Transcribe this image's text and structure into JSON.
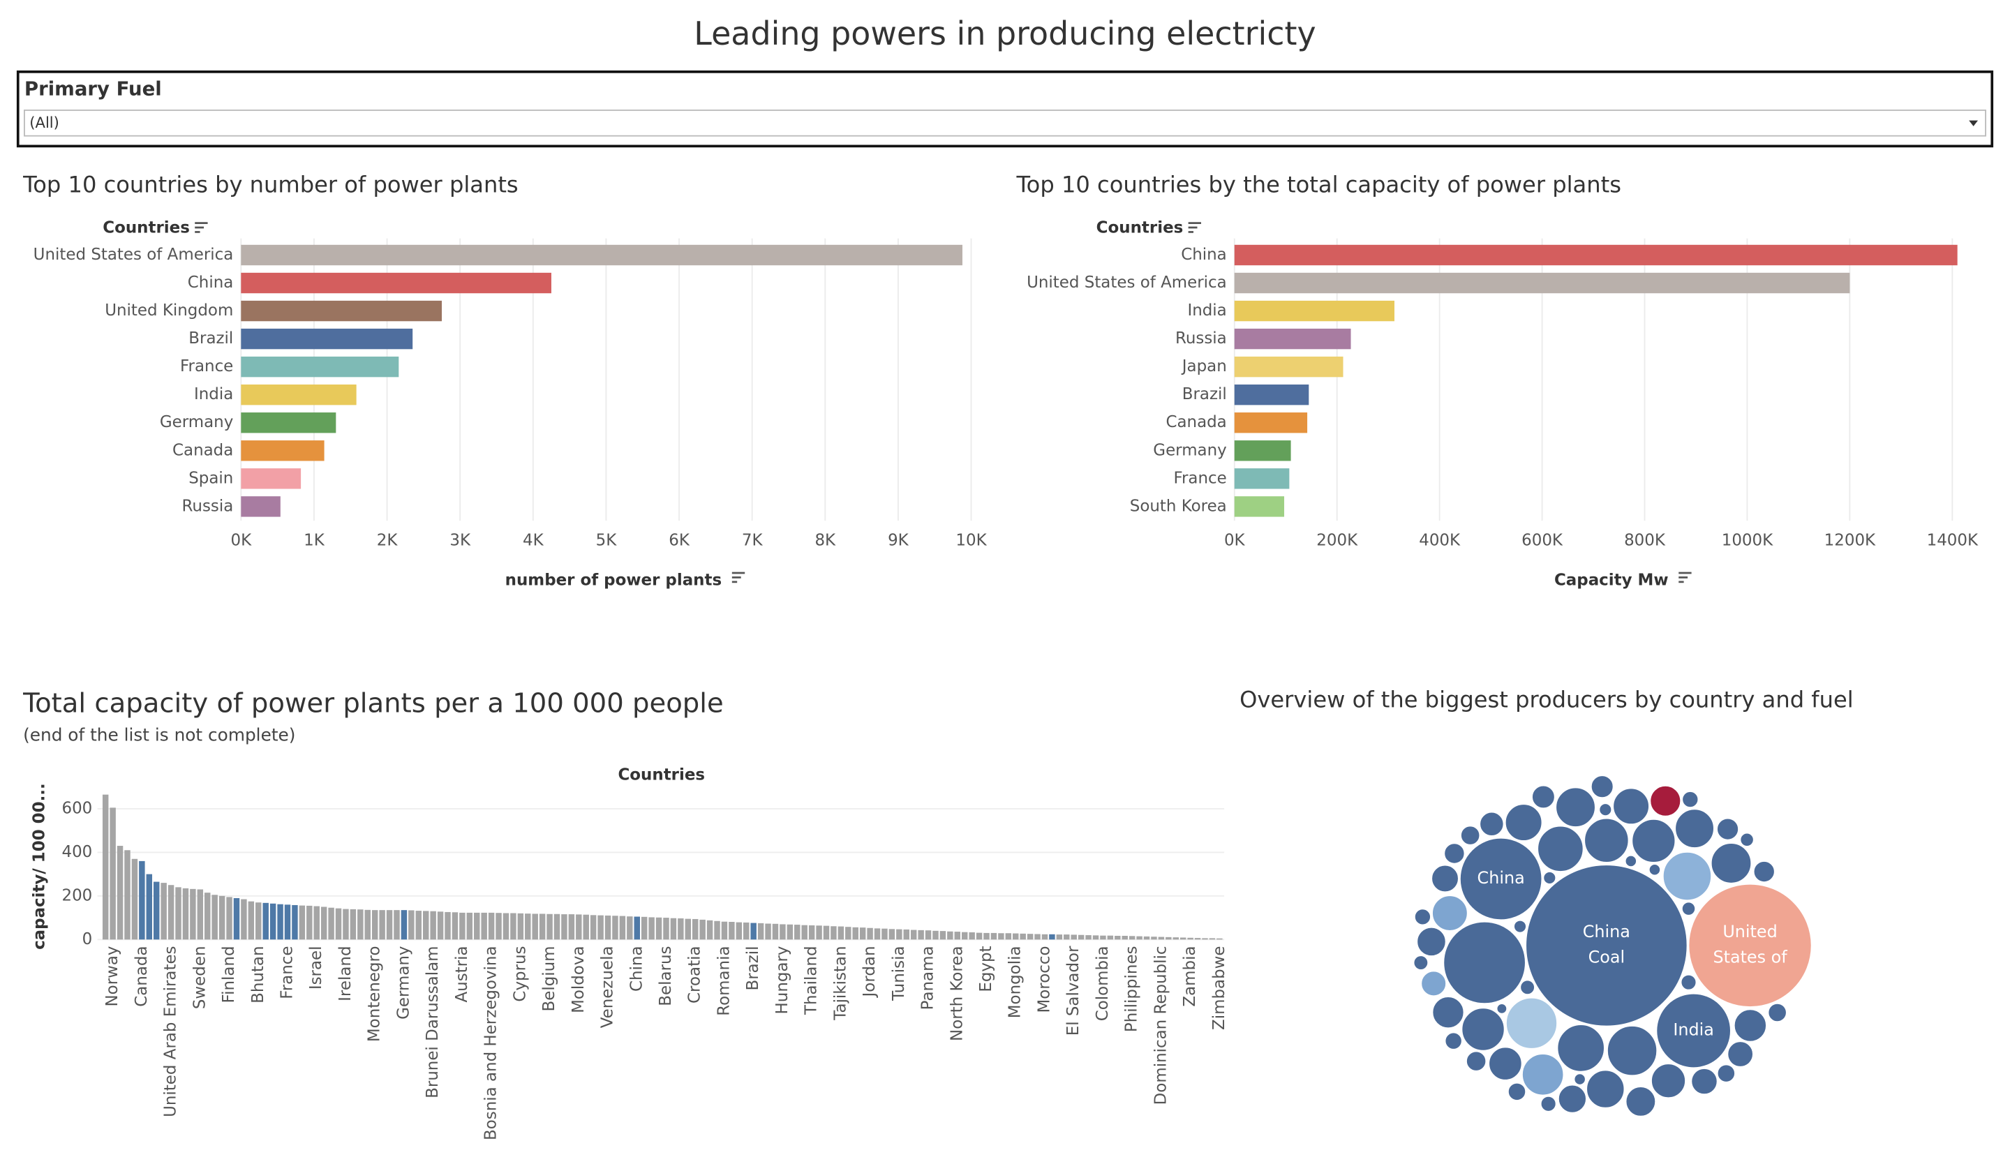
{
  "title": "Leading powers in producing electricty",
  "filter": {
    "label": "Primary Fuel",
    "value": "(All)"
  },
  "chart_data": [
    {
      "type": "hbar",
      "title": "Top 10 countries by number of power plants",
      "category_label": "Countries",
      "x_label": "number of power plants",
      "categories": [
        "United States of America",
        "China",
        "United Kingdom",
        "Brazil",
        "France",
        "India",
        "Germany",
        "Canada",
        "Spain",
        "Russia"
      ],
      "values": [
        9880,
        4250,
        2750,
        2350,
        2160,
        1580,
        1300,
        1140,
        820,
        540
      ],
      "colors": [
        "#b9b0ab",
        "#d45e5e",
        "#9a7460",
        "#4f6e9e",
        "#7ebab5",
        "#e8c95a",
        "#63a05a",
        "#e5923d",
        "#f2a0a6",
        "#a87ca1"
      ],
      "xlim": [
        0,
        10200
      ],
      "xticks": [
        {
          "value": 0,
          "label": "0K"
        },
        {
          "value": 1000,
          "label": "1K"
        },
        {
          "value": 2000,
          "label": "2K"
        },
        {
          "value": 3000,
          "label": "3K"
        },
        {
          "value": 4000,
          "label": "4K"
        },
        {
          "value": 5000,
          "label": "5K"
        },
        {
          "value": 6000,
          "label": "6K"
        },
        {
          "value": 7000,
          "label": "7K"
        },
        {
          "value": 8000,
          "label": "8K"
        },
        {
          "value": 9000,
          "label": "9K"
        },
        {
          "value": 10000,
          "label": "10K"
        }
      ],
      "grid": true
    },
    {
      "type": "hbar",
      "title": "Top 10 countries by the total capacity of power plants",
      "category_label": "Countries",
      "x_label": "Capacity Mw",
      "categories": [
        "China",
        "United States of America",
        "India",
        "Russia",
        "Japan",
        "Brazil",
        "Canada",
        "Germany",
        "France",
        "South Korea"
      ],
      "values": [
        1410000,
        1200000,
        312000,
        227000,
        212000,
        145000,
        142000,
        110000,
        107000,
        97000
      ],
      "colors": [
        "#d45e5e",
        "#b9b0ab",
        "#e8c95a",
        "#a87ca1",
        "#edd070",
        "#4f6e9e",
        "#e5923d",
        "#63a05a",
        "#7ebab5",
        "#9ed083"
      ],
      "xlim": [
        0,
        1470000
      ],
      "xticks": [
        {
          "value": 0,
          "label": "0K"
        },
        {
          "value": 200000,
          "label": "200K"
        },
        {
          "value": 400000,
          "label": "400K"
        },
        {
          "value": 600000,
          "label": "600K"
        },
        {
          "value": 800000,
          "label": "800K"
        },
        {
          "value": 1000000,
          "label": "1000K"
        },
        {
          "value": 1200000,
          "label": "1200K"
        },
        {
          "value": 1400000,
          "label": "1400K"
        }
      ],
      "grid": true
    },
    {
      "type": "column",
      "title": "Total capacity of power plants per a 100 000 people",
      "subtitle": "(end of the list is not complete)",
      "x_label": "Countries",
      "y_label": "capacity/ 100 00...",
      "categories": [
        null,
        "Norway",
        null,
        null,
        null,
        "Canada",
        null,
        null,
        null,
        "United Arab Emirates",
        null,
        null,
        null,
        "Sweden",
        null,
        null,
        null,
        "Finland",
        null,
        null,
        null,
        "Bhutan",
        null,
        null,
        null,
        "France",
        null,
        null,
        null,
        "Israel",
        null,
        null,
        null,
        "Ireland",
        null,
        null,
        null,
        "Montenegro",
        null,
        null,
        null,
        "Germany",
        null,
        null,
        null,
        "Brunei Darussalam",
        null,
        null,
        null,
        "Austria",
        null,
        null,
        null,
        "Bosnia and Herzegovina",
        null,
        null,
        null,
        "Cyprus",
        null,
        null,
        null,
        "Belgium",
        null,
        null,
        null,
        "Moldova",
        null,
        null,
        null,
        "Venezuela",
        null,
        null,
        null,
        "China",
        null,
        null,
        null,
        "Belarus",
        null,
        null,
        null,
        "Croatia",
        null,
        null,
        null,
        "Romania",
        null,
        null,
        null,
        "Brazil",
        null,
        null,
        null,
        "Hungary",
        null,
        null,
        null,
        "Thailand",
        null,
        null,
        null,
        "Tajikistan",
        null,
        null,
        null,
        "Jordan",
        null,
        null,
        null,
        "Tunisia",
        null,
        null,
        null,
        "Panama",
        null,
        null,
        null,
        "North Korea",
        null,
        null,
        null,
        "Egypt",
        null,
        null,
        null,
        "Mongolia",
        null,
        null,
        null,
        "Morocco",
        null,
        null,
        null,
        "El Salvador",
        null,
        null,
        null,
        "Colombia",
        null,
        null,
        null,
        "Philippines",
        null,
        null,
        null,
        "Dominican Republic",
        null,
        null,
        null,
        "Zambia",
        null,
        null,
        null,
        "Zimbabwe"
      ],
      "values": [
        665,
        605,
        430,
        410,
        370,
        360,
        300,
        265,
        260,
        250,
        240,
        235,
        232,
        230,
        215,
        205,
        200,
        195,
        190,
        185,
        175,
        170,
        168,
        165,
        162,
        160,
        158,
        156,
        155,
        153,
        150,
        146,
        143,
        140,
        139,
        138,
        136,
        135,
        135,
        135,
        135,
        135,
        134,
        132,
        131,
        130,
        128,
        126,
        125,
        123,
        123,
        123,
        123,
        123,
        122,
        121,
        121,
        120,
        119,
        118,
        118,
        117,
        117,
        116,
        116,
        115,
        114,
        112,
        111,
        110,
        109,
        108,
        106,
        105,
        104,
        102,
        101,
        100,
        98,
        97,
        95,
        94,
        91,
        88,
        85,
        82,
        81,
        79,
        78,
        76,
        75,
        73,
        72,
        70,
        69,
        68,
        66,
        65,
        64,
        63,
        61,
        60,
        58,
        56,
        55,
        53,
        51,
        50,
        48,
        47,
        46,
        44,
        43,
        42,
        40,
        39,
        37,
        36,
        34,
        33,
        31,
        30,
        30,
        29,
        29,
        28,
        27,
        26,
        25,
        24,
        24,
        23,
        23,
        22,
        21,
        20,
        19,
        18,
        18,
        17,
        17,
        16,
        15,
        14,
        13,
        12,
        11,
        10,
        9,
        8,
        7,
        6,
        6,
        5
      ],
      "colors": [
        "#a5a5a5",
        "#a5a5a5",
        "#a5a5a5",
        "#a5a5a5",
        "#a5a5a5",
        "#4e79a7",
        "#4e79a7",
        "#4e79a7",
        "#a5a5a5",
        "#a5a5a5",
        "#a5a5a5",
        "#a5a5a5",
        "#a5a5a5",
        "#a5a5a5",
        "#a5a5a5",
        "#a5a5a5",
        "#a5a5a5",
        "#a5a5a5",
        "#4e79a7",
        "#a5a5a5",
        "#a5a5a5",
        "#a5a5a5",
        "#4e79a7",
        "#4e79a7",
        "#4e79a7",
        "#4e79a7",
        "#4e79a7",
        "#a5a5a5",
        "#a5a5a5",
        "#a5a5a5",
        "#a5a5a5",
        "#a5a5a5",
        "#a5a5a5",
        "#a5a5a5",
        "#a5a5a5",
        "#a5a5a5",
        "#a5a5a5",
        "#a5a5a5",
        "#a5a5a5",
        "#a5a5a5",
        "#a5a5a5",
        "#4e79a7",
        "#a5a5a5",
        "#a5a5a5",
        "#a5a5a5",
        "#a5a5a5",
        "#a5a5a5",
        "#a5a5a5",
        "#a5a5a5",
        "#a5a5a5",
        "#a5a5a5",
        "#a5a5a5",
        "#a5a5a5",
        "#a5a5a5",
        "#a5a5a5",
        "#a5a5a5",
        "#a5a5a5",
        "#a5a5a5",
        "#a5a5a5",
        "#a5a5a5",
        "#a5a5a5",
        "#a5a5a5",
        "#a5a5a5",
        "#a5a5a5",
        "#a5a5a5",
        "#a5a5a5",
        "#a5a5a5",
        "#a5a5a5",
        "#a5a5a5",
        "#a5a5a5",
        "#a5a5a5",
        "#a5a5a5",
        "#a5a5a5",
        "#4e79a7",
        "#a5a5a5",
        "#a5a5a5",
        "#a5a5a5",
        "#a5a5a5",
        "#a5a5a5",
        "#a5a5a5",
        "#a5a5a5",
        "#a5a5a5",
        "#a5a5a5",
        "#a5a5a5",
        "#a5a5a5",
        "#a5a5a5",
        "#a5a5a5",
        "#a5a5a5",
        "#a5a5a5",
        "#4e79a7",
        "#a5a5a5",
        "#a5a5a5",
        "#a5a5a5",
        "#a5a5a5",
        "#a5a5a5",
        "#a5a5a5",
        "#a5a5a5",
        "#a5a5a5",
        "#a5a5a5",
        "#a5a5a5",
        "#a5a5a5",
        "#a5a5a5",
        "#a5a5a5",
        "#a5a5a5",
        "#a5a5a5",
        "#a5a5a5",
        "#a5a5a5",
        "#a5a5a5",
        "#a5a5a5",
        "#a5a5a5",
        "#a5a5a5",
        "#a5a5a5",
        "#a5a5a5",
        "#a5a5a5",
        "#a5a5a5",
        "#a5a5a5",
        "#a5a5a5",
        "#a5a5a5",
        "#a5a5a5",
        "#a5a5a5",
        "#a5a5a5",
        "#a5a5a5",
        "#a5a5a5",
        "#a5a5a5",
        "#a5a5a5",
        "#a5a5a5",
        "#a5a5a5",
        "#a5a5a5",
        "#a5a5a5",
        "#a5a5a5",
        "#4e79a7",
        "#a5a5a5",
        "#a5a5a5",
        "#a5a5a5",
        "#a5a5a5",
        "#a5a5a5",
        "#a5a5a5",
        "#a5a5a5",
        "#a5a5a5",
        "#a5a5a5",
        "#a5a5a5",
        "#a5a5a5",
        "#a5a5a5",
        "#a5a5a5",
        "#a5a5a5",
        "#a5a5a5",
        "#a5a5a5",
        "#a5a5a5",
        "#a5a5a5",
        "#a5a5a5",
        "#a5a5a5",
        "#a5a5a5",
        "#a5a5a5",
        "#a5a5a5"
      ],
      "ylim": [
        0,
        700
      ],
      "yticks": [
        0,
        200,
        400,
        600
      ],
      "grid": true
    },
    {
      "type": "bubble",
      "title": "Overview of the biggest producers by country and fuel",
      "values": [
        1000,
        580,
        258,
        258,
        212,
        100,
        90,
        95,
        85,
        80,
        75,
        72,
        70,
        66,
        62,
        60,
        58,
        55,
        52,
        50,
        48,
        45,
        42,
        40,
        38,
        36,
        34,
        32,
        30,
        28,
        26,
        25,
        24,
        22,
        20,
        19,
        18,
        17,
        16,
        15,
        14,
        13,
        12,
        12,
        11,
        10,
        10,
        9,
        9,
        8,
        8,
        7,
        7,
        6,
        6,
        6,
        5,
        5,
        5,
        4
      ],
      "colors": [
        "#4a6a98",
        "#f0a592",
        "#4a6a98",
        "#4a6a98",
        "#4a6a98",
        "#a9c8e3",
        "#8db2d9",
        "#4a6a98",
        "#4a6a98",
        "#4a6a98",
        "#4a6a98",
        "#4a6a98",
        "#4a6a98",
        "#7ea5d0",
        "#4a6a98",
        "#4a6a98",
        "#4a6a98",
        "#4a6a98",
        "#4a6a98",
        "#4a6a98",
        "#7ea5d0",
        "#4a6a98",
        "#4a6a98",
        "#4a6a98",
        "#4a6a98",
        "#a61c3c",
        "#4a6a98",
        "#4a6a98",
        "#4a6a98",
        "#4a6a98",
        "#4a6a98",
        "#4a6a98",
        "#7ea5d0",
        "#4a6a98",
        "#4a6a98",
        "#4a6a98",
        "#4a6a98",
        "#4a6a98",
        "#4a6a98",
        "#4a6a98",
        "#4a6a98",
        "#4a6a98",
        "#4a6a98",
        "#4a6a98",
        "#4a6a98",
        "#4a6a98",
        "#4a6a98",
        "#4a6a98",
        "#4a6a98",
        "#4a6a98",
        "#4a6a98",
        "#4a6a98",
        "#4a6a98",
        "#4a6a98",
        "#4a6a98",
        "#4a6a98",
        "#4a6a98",
        "#4a6a98",
        "#4a6a98",
        "#4a6a98"
      ],
      "labels": [
        [
          "China",
          "Coal"
        ],
        [
          "United",
          "States of"
        ],
        null,
        [
          "China"
        ],
        [
          "India"
        ],
        null,
        null,
        null,
        null,
        null,
        null,
        null,
        null,
        null,
        null,
        null,
        null,
        null,
        null,
        null,
        null,
        null,
        null,
        null,
        null,
        null,
        null,
        null,
        null,
        null,
        null,
        null,
        null,
        null,
        null,
        null,
        null,
        null,
        null,
        null,
        null,
        null,
        null,
        null,
        null,
        null,
        null,
        null,
        null,
        null,
        null,
        null,
        null,
        null,
        null,
        null,
        null,
        null,
        null,
        null
      ]
    }
  ]
}
